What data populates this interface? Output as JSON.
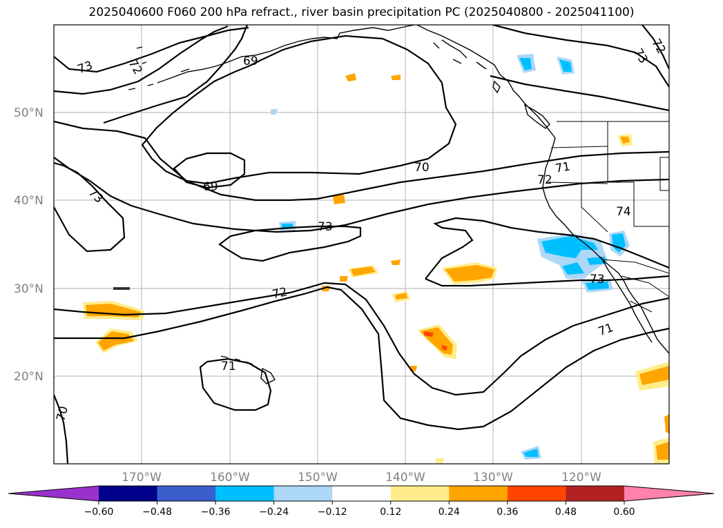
{
  "title": "2025040600 F060 200 hPa refract., river basin precipitation PC (2025040800 - 2025041100)",
  "longitude_labels": [
    "170°W",
    "160°W",
    "150°W",
    "140°W",
    "130°W",
    "120°W"
  ],
  "latitude_labels": [
    "50°N",
    "40°N",
    "30°N",
    "20°N"
  ],
  "contour_labels": [
    "73",
    "72",
    "69",
    "69",
    "73",
    "73",
    "72",
    "70",
    "71",
    "72",
    "74",
    "73",
    "72",
    "71",
    "71",
    "70",
    "73"
  ],
  "colorbar": {
    "colors": [
      "#9932cc",
      "#00008b",
      "#3a5fcd",
      "#00bfff",
      "#add8f7",
      "#ffffff",
      "#ffec8b",
      "#ffa500",
      "#ff4500",
      "#b22222",
      "#ff82ab"
    ],
    "ticks": [
      "−0.60",
      "−0.48",
      "−0.36",
      "−0.24",
      "−0.12",
      "0.12",
      "0.24",
      "0.36",
      "0.48",
      "0.60"
    ]
  },
  "colors": {
    "land_outline": "#000000",
    "gridline": "#b0b0b0",
    "contour": "#000000"
  }
}
